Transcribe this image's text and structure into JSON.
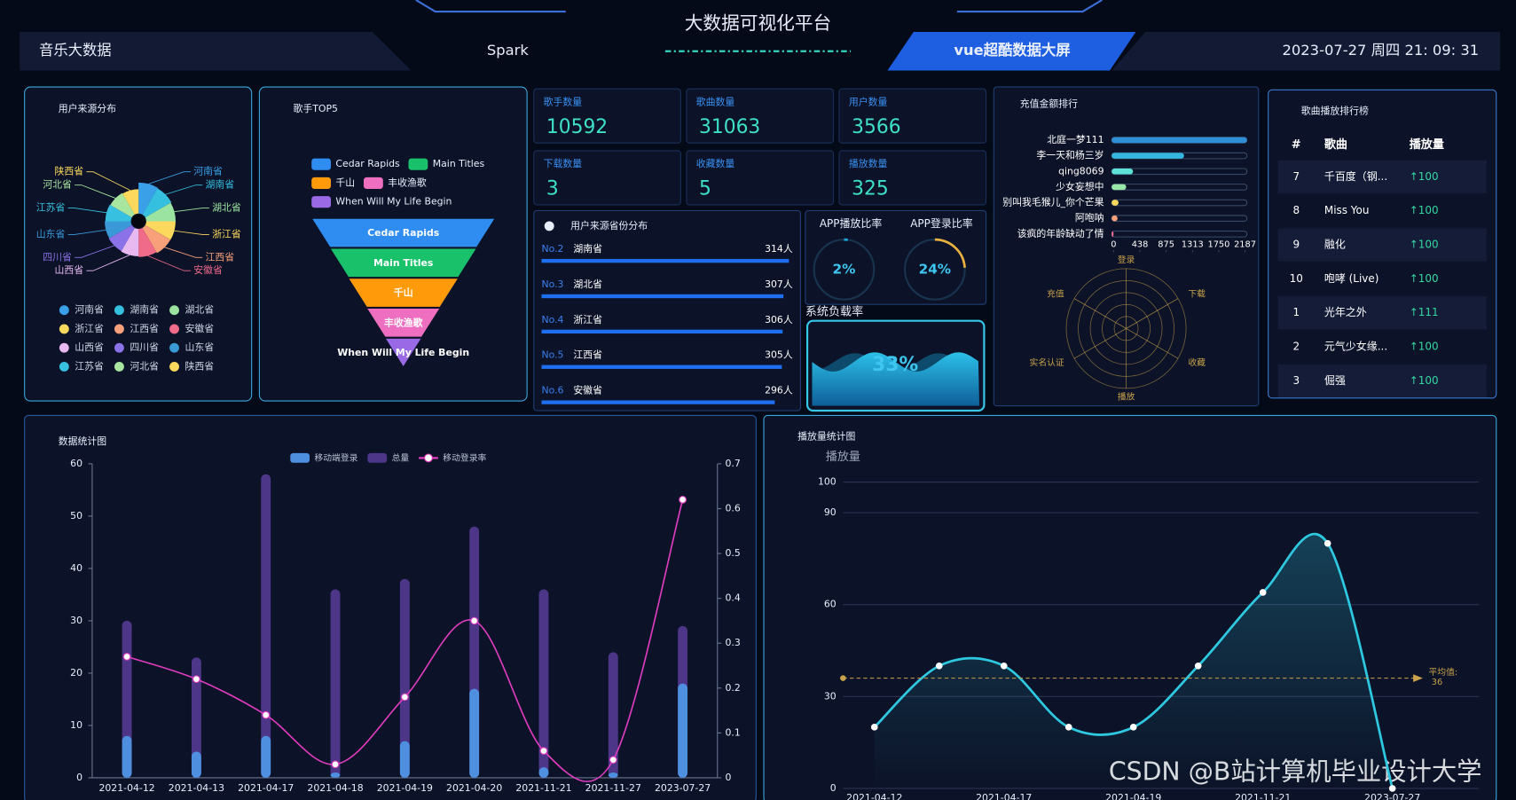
{
  "header": {
    "title": "大数据可视化平台",
    "nav_left": "音乐大数据",
    "nav_mid": "Spark",
    "nav_active": "vue超酷数据大屏",
    "datetime": "2023-07-27 周四 21: 09: 31"
  },
  "stats": [
    {
      "label": "歌手数量",
      "value": 10592
    },
    {
      "label": "歌曲数量",
      "value": 31063
    },
    {
      "label": "用户数量",
      "value": 3566
    },
    {
      "label": "下载数量",
      "value": 3
    },
    {
      "label": "收藏数量",
      "value": 5
    },
    {
      "label": "播放数量",
      "value": 325
    }
  ],
  "ranking_table": {
    "title": "歌曲播放排行榜",
    "columns": [
      "#",
      "歌曲",
      "播放量"
    ],
    "rows": [
      [
        7,
        "千百度（钢...",
        "↑100"
      ],
      [
        8,
        "Miss You",
        "↑100"
      ],
      [
        9,
        "融化",
        "↑100"
      ],
      [
        10,
        "咆哮 (Live)",
        "↑100"
      ],
      [
        1,
        "光年之外",
        "↑111"
      ],
      [
        2,
        "元气少女缘...",
        "↑100"
      ],
      [
        3,
        "倔强",
        "↑100"
      ]
    ]
  },
  "watermark": "CSDN @B站计算机毕业设计大学",
  "chart_data": [
    {
      "type": "rose",
      "title": "用户来源分布",
      "categories": [
        "河南省",
        "湖南省",
        "湖北省",
        "浙江省",
        "江西省",
        "安徽省",
        "山西省",
        "四川省",
        "山东省",
        "江苏省",
        "河北省",
        "陕西省"
      ],
      "values": [
        320,
        314,
        307,
        306,
        305,
        296,
        290,
        285,
        280,
        275,
        270,
        265
      ],
      "colors": [
        "#3aa0e8",
        "#36c0e0",
        "#9be3a0",
        "#fcd95c",
        "#f7a07a",
        "#f06a8a",
        "#e8b8f0",
        "#8b72e8",
        "#3a9ad8",
        "#38c0e0",
        "#a8e6a0",
        "#fcd95c"
      ]
    },
    {
      "type": "funnel",
      "title": "歌手TOP5",
      "categories": [
        "Cedar Rapids",
        "Main Titles",
        "千山",
        "丰收渔歌",
        "When Will My Life Begin"
      ],
      "values": [
        100,
        80,
        60,
        40,
        20
      ],
      "colors": [
        "#2f8cf0",
        "#19c26a",
        "#ff9a0a",
        "#ee6fbf",
        "#9a6ae6"
      ]
    },
    {
      "type": "progress",
      "title": "用户来源省份分布",
      "ranks": [
        "No.2",
        "No.3",
        "No.4",
        "No.5",
        "No.6"
      ],
      "categories": [
        "湖南省",
        "湖北省",
        "浙江省",
        "江西省",
        "安徽省"
      ],
      "values": [
        314,
        307,
        306,
        305,
        296
      ],
      "value_labels": [
        "314人",
        "307人",
        "306人",
        "305人",
        "296人"
      ],
      "color": "#1e6ff0"
    },
    {
      "type": "gauge",
      "title": "APP播放比率",
      "value": 2,
      "value_label": "2%",
      "range": [
        0,
        100
      ],
      "color": "#1aa7d8"
    },
    {
      "type": "gauge",
      "title": "APP登录比率",
      "value": 24,
      "value_label": "24%",
      "range": [
        0,
        100
      ],
      "color": "#e8b040"
    },
    {
      "type": "liquidfill",
      "title": "系统负载率",
      "value": 33,
      "value_label": "33%",
      "range": [
        0,
        100
      ],
      "color": "#1a9ad0"
    },
    {
      "type": "hbar",
      "title": "充值金额排行",
      "categories": [
        "北庭一梦111",
        "李一天和杨三岁",
        "qing8069",
        "少女妄想中",
        "别叫我毛猴儿_你个芒果",
        "阿咆呐",
        "该疯的年龄缺动了情"
      ],
      "values": [
        2187,
        1170,
        345,
        235,
        110,
        95,
        30
      ],
      "colors": [
        "#2e8fd8",
        "#35b6e0",
        "#5ce0d8",
        "#9ae6a8",
        "#fcd95c",
        "#f7a07a",
        "#f06a8a"
      ],
      "xlim": [
        0,
        2187
      ],
      "xticks": [
        0,
        438,
        875,
        1313,
        1750,
        2187
      ]
    },
    {
      "type": "radar",
      "indicators": [
        "登录",
        "下载",
        "收藏",
        "播放",
        "实名认证",
        "充值"
      ],
      "color": "#c9a24a"
    },
    {
      "type": "bar-line",
      "title": "数据统计图",
      "categories": [
        "2021-04-12",
        "2021-04-13",
        "2021-04-17",
        "2021-04-18",
        "2021-04-19",
        "2021-04-20",
        "2021-11-21",
        "2021-11-27",
        "2023-07-27"
      ],
      "series": [
        {
          "name": "移动端登录",
          "type": "bar",
          "color": "#4f8fe0",
          "values": [
            8,
            5,
            8,
            1,
            7,
            17,
            2,
            1,
            18
          ]
        },
        {
          "name": "总量",
          "type": "bar",
          "color": "#4d3688",
          "values": [
            30,
            23,
            58,
            36,
            38,
            48,
            36,
            24,
            29
          ]
        },
        {
          "name": "移动登录率",
          "type": "line",
          "axis": "y2",
          "color": "#e03cc0",
          "values": [
            0.27,
            0.22,
            0.14,
            0.03,
            0.18,
            0.35,
            0.06,
            0.04,
            0.62
          ]
        }
      ],
      "ylim": [
        0,
        60
      ],
      "yticks": [
        0,
        10,
        20,
        30,
        40,
        50,
        60
      ],
      "y2lim": [
        0,
        0.7
      ],
      "y2ticks": [
        0,
        0.1,
        0.2,
        0.3,
        0.4,
        0.5,
        0.6,
        0.7
      ],
      "legend": "top",
      "grid": false
    },
    {
      "type": "line",
      "title": "播放量统计图",
      "y_label": "播放量",
      "categories": [
        "2021-04-12",
        null,
        "2021-04-17",
        null,
        "2021-04-19",
        null,
        "2021-11-21",
        null,
        "2023-07-27"
      ],
      "values": [
        20,
        40,
        40,
        20,
        20,
        40,
        64,
        80,
        0
      ],
      "color": "#2ec8e0",
      "ylim": [
        0,
        100
      ],
      "yticks": [
        0,
        30,
        60,
        90,
        100
      ],
      "grid": true,
      "markline": {
        "label": "平均值:",
        "value": 36,
        "color": "#c9a24a"
      }
    }
  ]
}
